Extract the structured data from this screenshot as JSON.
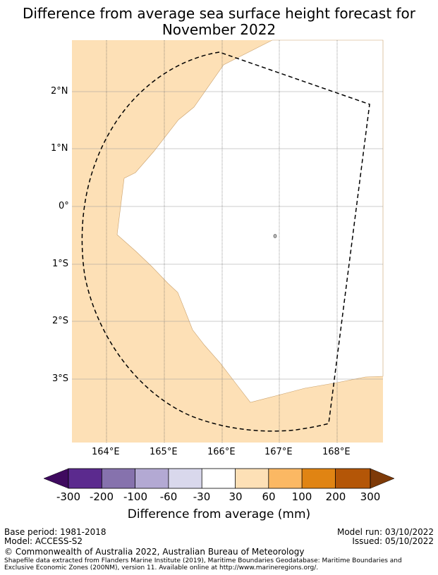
{
  "title": {
    "line1": "Difference from average sea surface height forecast for",
    "line2": "November 2022"
  },
  "map": {
    "land_color": "#fde0b6",
    "sea_color": "#ffffff",
    "lat_labels": [
      "2°N",
      "1°N",
      "0°",
      "1°S",
      "2°S",
      "3°S"
    ],
    "lon_labels": [
      "164°E",
      "165°E",
      "166°E",
      "167°E",
      "168°E"
    ]
  },
  "colorbar": {
    "colors": [
      "#3f0a5f",
      "#5b2a8e",
      "#8672ad",
      "#b3a9d3",
      "#d9d8ec",
      "#ffffff",
      "#fde0b6",
      "#fbb863",
      "#e08413",
      "#b45607",
      "#7e3a08"
    ],
    "labels": [
      "-300",
      "-200",
      "-100",
      "-60",
      "-30",
      "30",
      "60",
      "100",
      "200",
      "300"
    ],
    "title": "Difference from average (mm)"
  },
  "footer": {
    "base_period": "Base period: 1981-2018",
    "model": "Model: ACCESS-S2",
    "model_run": "Model run: 03/10/2022",
    "issued": "Issued: 05/10/2022",
    "copyright": "© Commonwealth of Australia 2022, Australian Bureau of Meteorology",
    "source_line1": "Shapefile data extracted from Flanders Marine Institute (2019), Maritime Boundaries Geodatabase: Maritime Boundaries and",
    "source_line2": "Exclusive Economic Zones (200NM), version 11. Available online at http://www.marineregions.org/."
  }
}
